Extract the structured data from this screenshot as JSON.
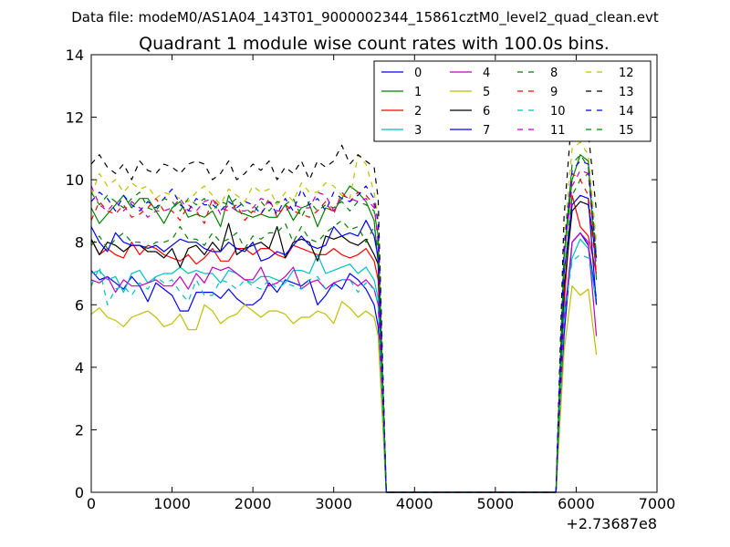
{
  "figure": {
    "suptitle": "Data file: modeM0/AS1A04_143T01_9000002344_15861cztM0_level2_quad_clean.evt"
  },
  "chart_data": {
    "type": "line",
    "title": "Quadrant 1 module wise count rates with 100.0s bins.",
    "xlabel": "",
    "ylabel": "",
    "x_offset_label": "+2.73687e8",
    "xlim": [
      0,
      7000
    ],
    "ylim": [
      0,
      14
    ],
    "xticks": [
      0,
      1000,
      2000,
      3000,
      4000,
      5000,
      6000,
      7000
    ],
    "yticks": [
      0,
      2,
      4,
      6,
      8,
      10,
      12,
      14
    ],
    "grid": false,
    "legend": {
      "placement": "top-right",
      "columns": 4
    },
    "x": [
      0,
      100,
      200,
      300,
      400,
      500,
      600,
      700,
      800,
      900,
      1000,
      1100,
      1200,
      1300,
      1400,
      1500,
      1600,
      1700,
      1800,
      1900,
      2000,
      2100,
      2200,
      2300,
      2400,
      2500,
      2600,
      2700,
      2800,
      2900,
      3000,
      3100,
      3200,
      3300,
      3400,
      3500,
      3550,
      3650,
      3750,
      5750,
      5850,
      5950,
      6050,
      6150,
      6250
    ],
    "series": [
      {
        "name": "0",
        "color": "#0000ff",
        "dash": "solid",
        "values": [
          7.1,
          6.8,
          6.9,
          6.7,
          6.5,
          6.9,
          6.6,
          6.1,
          6.7,
          6.5,
          6.3,
          5.8,
          5.8,
          6.4,
          6.4,
          6.4,
          6.2,
          6.5,
          6.2,
          6.0,
          6.0,
          6.2,
          6.7,
          6.4,
          6.8,
          6.7,
          6.6,
          6.8,
          6.0,
          6.3,
          6.7,
          6.5,
          7.0,
          6.8,
          6.5,
          6.0,
          5.3,
          0,
          0,
          0,
          5.0,
          8.0,
          8.3,
          7.9,
          6.2
        ]
      },
      {
        "name": "1",
        "color": "#008000",
        "dash": "solid",
        "values": [
          9.1,
          8.6,
          8.9,
          9.2,
          9.5,
          9.1,
          9.4,
          9.4,
          9.0,
          8.6,
          9.1,
          9.3,
          8.8,
          8.9,
          8.8,
          9.0,
          8.5,
          9.5,
          9.0,
          8.9,
          8.8,
          8.9,
          8.8,
          8.8,
          9.2,
          8.7,
          9.1,
          9.2,
          8.5,
          9.1,
          9.0,
          9.4,
          9.8,
          9.6,
          9.3,
          8.7,
          7.3,
          0,
          0,
          0,
          7.5,
          10.0,
          10.8,
          10.6,
          6.8
        ]
      },
      {
        "name": "2",
        "color": "#ff0000",
        "dash": "solid",
        "values": [
          8.1,
          7.6,
          7.8,
          7.6,
          7.5,
          8.0,
          7.6,
          7.9,
          7.8,
          7.6,
          7.5,
          7.4,
          7.6,
          7.3,
          7.5,
          7.8,
          7.4,
          7.4,
          7.8,
          7.8,
          7.6,
          7.8,
          7.8,
          7.6,
          7.5,
          7.9,
          7.8,
          7.7,
          7.6,
          7.6,
          7.8,
          7.6,
          7.5,
          7.6,
          7.8,
          7.4,
          6.8,
          0,
          0,
          0,
          6.0,
          9.5,
          8.5,
          8.2,
          7.0
        ]
      },
      {
        "name": "3",
        "color": "#00bfbf",
        "dash": "solid",
        "values": [
          7.0,
          7.1,
          6.8,
          6.9,
          6.4,
          7.0,
          7.1,
          6.7,
          6.9,
          7.0,
          7.0,
          7.2,
          7.0,
          7.1,
          7.0,
          7.0,
          6.7,
          7.1,
          7.0,
          6.8,
          6.7,
          6.9,
          6.9,
          6.8,
          6.7,
          7.1,
          7.1,
          7.0,
          7.6,
          7.0,
          7.1,
          7.2,
          7.3,
          7.0,
          7.2,
          6.8,
          6.2,
          0,
          0,
          0,
          5.8,
          7.5,
          8.1,
          7.8,
          6.0
        ]
      },
      {
        "name": "4",
        "color": "#bf00bf",
        "dash": "solid",
        "values": [
          6.8,
          6.7,
          6.9,
          6.4,
          6.8,
          6.6,
          6.6,
          6.7,
          6.8,
          6.6,
          6.6,
          6.9,
          6.5,
          7.0,
          6.7,
          7.2,
          7.1,
          7.2,
          7.0,
          6.8,
          6.8,
          7.2,
          6.6,
          6.7,
          6.9,
          7.2,
          6.5,
          6.7,
          6.8,
          6.5,
          6.7,
          6.8,
          6.8,
          6.6,
          6.8,
          6.5,
          6.0,
          0,
          0,
          0,
          5.5,
          8.0,
          8.3,
          8.0,
          5.0
        ]
      },
      {
        "name": "5",
        "color": "#bfbf00",
        "dash": "solid",
        "values": [
          5.7,
          5.9,
          5.6,
          5.5,
          5.3,
          5.6,
          5.7,
          5.8,
          5.6,
          5.3,
          5.4,
          5.7,
          5.2,
          5.2,
          6.0,
          5.8,
          5.4,
          5.6,
          5.7,
          6.0,
          5.8,
          5.6,
          5.8,
          5.8,
          5.7,
          5.4,
          5.6,
          5.6,
          5.8,
          5.7,
          5.4,
          6.1,
          5.9,
          5.6,
          5.8,
          5.6,
          5.0,
          0,
          0,
          0,
          4.5,
          6.6,
          6.3,
          6.5,
          4.4
        ]
      },
      {
        "name": "6",
        "color": "#000000",
        "dash": "solid",
        "values": [
          8.1,
          7.6,
          8.0,
          7.9,
          7.7,
          7.9,
          7.9,
          7.7,
          7.7,
          7.5,
          7.8,
          7.2,
          7.8,
          7.9,
          7.6,
          8.0,
          7.7,
          8.6,
          7.6,
          7.8,
          7.9,
          8.0,
          7.8,
          8.5,
          7.5,
          8.0,
          8.1,
          8.0,
          7.4,
          8.2,
          8.1,
          8.2,
          8.0,
          7.9,
          8.1,
          7.6,
          7.3,
          0,
          0,
          0,
          6.5,
          9.0,
          9.3,
          9.2,
          7.5
        ]
      },
      {
        "name": "7",
        "color": "#0000ff",
        "dash": "solid",
        "values": [
          8.5,
          8.0,
          7.7,
          8.3,
          8.0,
          7.9,
          7.9,
          7.8,
          7.9,
          7.7,
          7.9,
          8.1,
          8.0,
          8.0,
          7.8,
          7.7,
          7.7,
          8.0,
          7.8,
          7.7,
          8.0,
          7.4,
          7.5,
          7.7,
          7.6,
          7.9,
          8.2,
          7.9,
          7.8,
          7.9,
          8.5,
          8.2,
          8.3,
          8.2,
          8.7,
          8.2,
          7.5,
          0,
          0,
          0,
          7.0,
          9.2,
          9.5,
          9.4,
          6.0
        ]
      },
      {
        "name": "8",
        "color": "#008000",
        "dash": "dashed",
        "values": [
          7.9,
          8.2,
          7.8,
          8.1,
          8.3,
          8.0,
          8.0,
          7.8,
          8.0,
          8.0,
          8.1,
          8.5,
          8.1,
          8.1,
          7.9,
          8.3,
          8.0,
          8.1,
          8.3,
          7.8,
          8.2,
          8.1,
          8.3,
          8.3,
          8.6,
          8.0,
          8.5,
          8.1,
          8.0,
          8.3,
          8.5,
          8.7,
          8.4,
          8.5,
          8.0,
          8.5,
          7.8,
          0,
          0,
          0,
          7.0,
          9.5,
          10.0,
          10.2,
          7.5
        ]
      },
      {
        "name": "9",
        "color": "#ff0000",
        "dash": "dashed",
        "values": [
          8.7,
          9.3,
          9.0,
          8.9,
          9.2,
          8.8,
          8.9,
          9.1,
          9.4,
          9.0,
          9.0,
          8.7,
          9.2,
          9.0,
          8.6,
          9.4,
          9.1,
          9.0,
          9.2,
          8.7,
          9.0,
          8.9,
          9.4,
          8.8,
          9.2,
          9.0,
          8.9,
          8.8,
          9.0,
          9.3,
          8.9,
          9.6,
          9.3,
          9.6,
          9.5,
          9.2,
          8.0,
          0,
          0,
          0,
          7.8,
          10.2,
          10.0,
          9.5,
          7.0
        ]
      },
      {
        "name": "10",
        "color": "#00bfbf",
        "dash": "dashed",
        "values": [
          6.6,
          7.2,
          6.0,
          6.5,
          6.6,
          6.3,
          6.7,
          6.5,
          6.9,
          6.7,
          6.8,
          6.4,
          6.1,
          6.8,
          6.3,
          6.3,
          6.8,
          6.7,
          6.5,
          6.8,
          6.6,
          6.5,
          6.8,
          6.5,
          6.7,
          6.6,
          6.5,
          6.8,
          6.9,
          6.5,
          6.6,
          6.8,
          6.8,
          6.4,
          6.7,
          6.5,
          6.0,
          0,
          0,
          0,
          5.6,
          7.4,
          7.6,
          7.5,
          6.2
        ]
      },
      {
        "name": "11",
        "color": "#bf00bf",
        "dash": "dashed",
        "values": [
          9.8,
          9.2,
          9.0,
          9.3,
          9.0,
          9.3,
          9.1,
          8.8,
          9.0,
          9.0,
          9.1,
          9.4,
          9.0,
          9.0,
          9.3,
          9.4,
          8.9,
          9.2,
          9.0,
          9.0,
          9.1,
          9.4,
          9.3,
          9.0,
          9.0,
          9.2,
          9.1,
          9.1,
          9.6,
          9.5,
          9.0,
          9.5,
          9.4,
          9.3,
          9.4,
          9.1,
          8.2,
          0,
          0,
          0,
          7.6,
          9.8,
          10.3,
          10.2,
          7.2
        ]
      },
      {
        "name": "12",
        "color": "#bfbf00",
        "dash": "dashed",
        "values": [
          9.5,
          10.2,
          9.8,
          10.0,
          9.6,
          9.9,
          9.7,
          9.8,
          9.4,
          9.6,
          9.5,
          9.4,
          9.3,
          9.6,
          9.8,
          9.5,
          9.2,
          9.7,
          9.5,
          9.3,
          9.8,
          9.6,
          9.7,
          9.2,
          9.6,
          9.3,
          9.9,
          9.6,
          9.6,
          9.9,
          9.8,
          9.5,
          9.4,
          10.8,
          10.5,
          9.6,
          8.8,
          0,
          0,
          0,
          8.0,
          11.0,
          11.2,
          10.8,
          8.0
        ]
      },
      {
        "name": "13",
        "color": "#000000",
        "dash": "dashed",
        "values": [
          10.5,
          10.8,
          10.4,
          10.2,
          10.5,
          10.0,
          10.6,
          10.3,
          10.2,
          10.5,
          10.4,
          10.2,
          10.5,
          10.6,
          10.5,
          10.0,
          10.2,
          10.6,
          10.0,
          10.2,
          10.5,
          10.3,
          10.6,
          10.0,
          10.4,
          10.2,
          10.6,
          10.0,
          10.6,
          10.4,
          10.6,
          11.1,
          10.5,
          10.8,
          10.6,
          10.4,
          9.4,
          0,
          0,
          0,
          8.8,
          12.2,
          11.8,
          11.5,
          9.0
        ]
      },
      {
        "name": "14",
        "color": "#0000ff",
        "dash": "dashed",
        "values": [
          9.3,
          9.6,
          9.4,
          9.0,
          9.5,
          9.2,
          9.0,
          9.3,
          9.1,
          9.4,
          9.7,
          9.2,
          9.0,
          9.4,
          9.2,
          9.2,
          9.0,
          9.3,
          9.1,
          9.3,
          9.2,
          8.9,
          9.3,
          8.9,
          9.4,
          9.0,
          9.7,
          9.2,
          9.4,
          9.0,
          9.6,
          9.4,
          9.3,
          9.5,
          9.8,
          9.4,
          8.6,
          0,
          0,
          0,
          7.8,
          10.3,
          10.6,
          10.5,
          7.5
        ]
      },
      {
        "name": "15",
        "color": "#008000",
        "dash": "dashed",
        "values": [
          9.6,
          9.2,
          9.5,
          9.3,
          9.1,
          9.4,
          9.6,
          9.1,
          9.0,
          9.4,
          9.3,
          9.0,
          9.4,
          9.2,
          9.4,
          9.0,
          9.3,
          9.2,
          9.4,
          9.1,
          8.9,
          9.3,
          9.0,
          9.3,
          9.2,
          9.4,
          8.8,
          9.3,
          9.0,
          9.2,
          9.1,
          9.3,
          9.0,
          9.3,
          9.2,
          9.0,
          8.2,
          0,
          0,
          0,
          7.5,
          10.5,
          10.8,
          10.4,
          7.6
        ]
      }
    ]
  }
}
